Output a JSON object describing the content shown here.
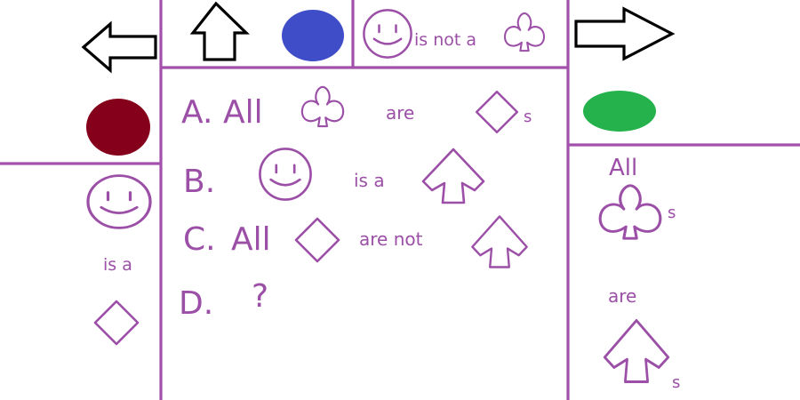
{
  "colors": {
    "line": "#a250ab",
    "text": "#9b4fa6",
    "blue_dot": "#3f4dc9",
    "red_dot": "#85001b",
    "green_dot": "#25b24c",
    "arrow_stroke": "#000000"
  },
  "top": {
    "arrow_left_icon": "left-arrow-icon",
    "arrow_up_icon": "up-arrow-icon",
    "arrow_right_icon": "right-arrow-icon",
    "statement_middle": "is not a"
  },
  "options": {
    "a_letter": "A.",
    "a_all": "All",
    "a_are": "are",
    "a_plural": "s",
    "b_letter": "B.",
    "b_is_a": "is a",
    "c_letter": "C.",
    "c_all": "All",
    "c_are_not": "are not",
    "d_letter": "D.",
    "d_question": "?"
  },
  "left_panel": {
    "is_a": "is a"
  },
  "right_panel": {
    "all": "All",
    "plural_1": "s",
    "are": "are",
    "plural_2": "s"
  }
}
